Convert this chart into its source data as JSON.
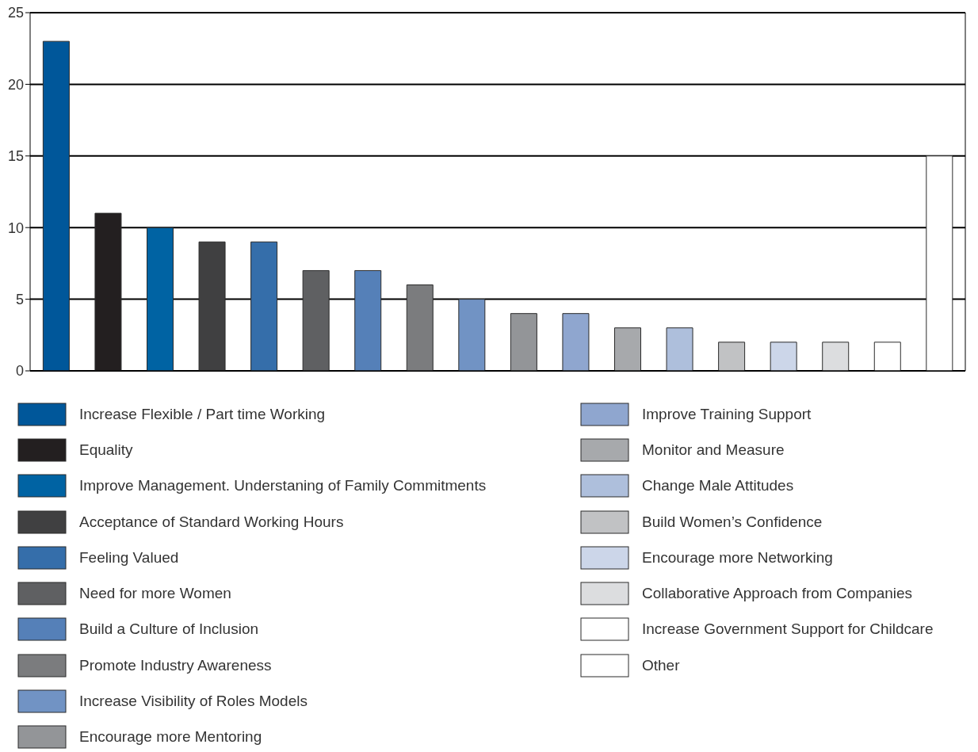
{
  "chart_data": {
    "type": "bar",
    "stacked": true,
    "categories": [
      null,
      null,
      null,
      null,
      null,
      null,
      null,
      null,
      null,
      null,
      null,
      null,
      null,
      null,
      null,
      null,
      null,
      null
    ],
    "series": [
      {
        "name": "Increase Flexible / Part time Working",
        "color": "#00579a",
        "values": [
          23,
          null,
          null,
          null,
          null,
          null,
          null,
          null,
          null,
          null,
          null,
          null,
          null,
          null,
          null,
          null,
          null,
          null
        ]
      },
      {
        "name": "Equality",
        "color": "#231f20",
        "values": [
          null,
          11,
          null,
          null,
          null,
          null,
          null,
          null,
          null,
          null,
          null,
          null,
          null,
          null,
          null,
          null,
          null,
          null
        ]
      },
      {
        "name": "Improve Management. Understaning of Family Commitments",
        "color": "#0063a3",
        "values": [
          null,
          null,
          10,
          null,
          null,
          null,
          null,
          null,
          null,
          null,
          null,
          null,
          null,
          null,
          null,
          null,
          null,
          null
        ]
      },
      {
        "name": "Acceptance of Standard Working Hours",
        "color": "#404041",
        "values": [
          null,
          null,
          null,
          9,
          null,
          null,
          null,
          null,
          null,
          null,
          null,
          null,
          null,
          null,
          null,
          null,
          null,
          null
        ]
      },
      {
        "name": "Feeling Valued",
        "color": "#356eaa",
        "values": [
          null,
          null,
          null,
          null,
          9,
          null,
          null,
          null,
          null,
          null,
          null,
          null,
          null,
          null,
          null,
          null,
          null,
          null
        ]
      },
      {
        "name": "Need for more Women",
        "color": "#5f6062",
        "values": [
          null,
          null,
          null,
          null,
          null,
          7,
          null,
          null,
          null,
          null,
          null,
          null,
          null,
          null,
          null,
          null,
          null,
          null
        ]
      },
      {
        "name": "Build a Culture of Inclusion",
        "color": "#5580b8",
        "values": [
          null,
          null,
          null,
          null,
          null,
          null,
          7,
          null,
          null,
          null,
          null,
          null,
          null,
          null,
          null,
          null,
          null,
          null
        ]
      },
      {
        "name": "Promote Industry Awareness",
        "color": "#7b7c7e",
        "values": [
          null,
          null,
          null,
          null,
          null,
          null,
          null,
          6,
          null,
          null,
          null,
          null,
          null,
          null,
          null,
          null,
          null,
          null
        ]
      },
      {
        "name": "Increase Visibility of Roles Models",
        "color": "#7193c4",
        "values": [
          null,
          null,
          null,
          null,
          null,
          null,
          null,
          null,
          5,
          null,
          null,
          null,
          null,
          null,
          null,
          null,
          null,
          null
        ]
      },
      {
        "name": "Encourage more Mentoring",
        "color": "#939598",
        "values": [
          null,
          null,
          null,
          null,
          null,
          null,
          null,
          null,
          null,
          4,
          null,
          null,
          null,
          null,
          null,
          null,
          null,
          null
        ]
      },
      {
        "name": "Improve Training Support",
        "color": "#8fa6cf",
        "values": [
          null,
          null,
          null,
          null,
          null,
          null,
          null,
          null,
          null,
          null,
          4,
          null,
          null,
          null,
          null,
          null,
          null,
          null
        ]
      },
      {
        "name": "Monitor and Measure",
        "color": "#a7a9ac",
        "values": [
          null,
          null,
          null,
          null,
          null,
          null,
          null,
          null,
          null,
          null,
          null,
          3,
          null,
          null,
          null,
          null,
          null,
          null
        ]
      },
      {
        "name": "Change Male Attitudes",
        "color": "#aebfdc",
        "values": [
          null,
          null,
          null,
          null,
          null,
          null,
          null,
          null,
          null,
          null,
          null,
          null,
          3,
          null,
          null,
          null,
          null,
          null
        ]
      },
      {
        "name": "Build Women’s Confidence",
        "color": "#c1c2c4",
        "values": [
          null,
          null,
          null,
          null,
          null,
          null,
          null,
          null,
          null,
          null,
          null,
          null,
          null,
          2,
          null,
          null,
          null,
          null
        ]
      },
      {
        "name": "Encourage more Networking",
        "color": "#ccd6e9",
        "values": [
          null,
          null,
          null,
          null,
          null,
          null,
          null,
          null,
          null,
          null,
          null,
          null,
          null,
          null,
          2,
          null,
          null,
          null
        ]
      },
      {
        "name": "Collaborative Approach from Companies",
        "color": "#dcdddf",
        "values": [
          null,
          null,
          null,
          null,
          null,
          null,
          null,
          null,
          null,
          null,
          null,
          null,
          null,
          null,
          null,
          2,
          null,
          null
        ]
      },
      {
        "name": "Increase Government Support for Childcare",
        "color": "#ffffff",
        "values": [
          null,
          null,
          null,
          null,
          null,
          null,
          null,
          null,
          null,
          null,
          null,
          null,
          null,
          null,
          null,
          null,
          2,
          null
        ]
      },
      {
        "name": "Other",
        "color": "#ffffff",
        "values": [
          null,
          null,
          null,
          null,
          null,
          null,
          null,
          null,
          null,
          null,
          null,
          null,
          null,
          null,
          null,
          null,
          null,
          15
        ]
      }
    ],
    "ylim": [
      0,
      25
    ],
    "yticks": [
      0,
      5,
      10,
      15,
      20,
      25
    ],
    "grid": "y",
    "legend": "bottom",
    "tick_labels": "y"
  }
}
